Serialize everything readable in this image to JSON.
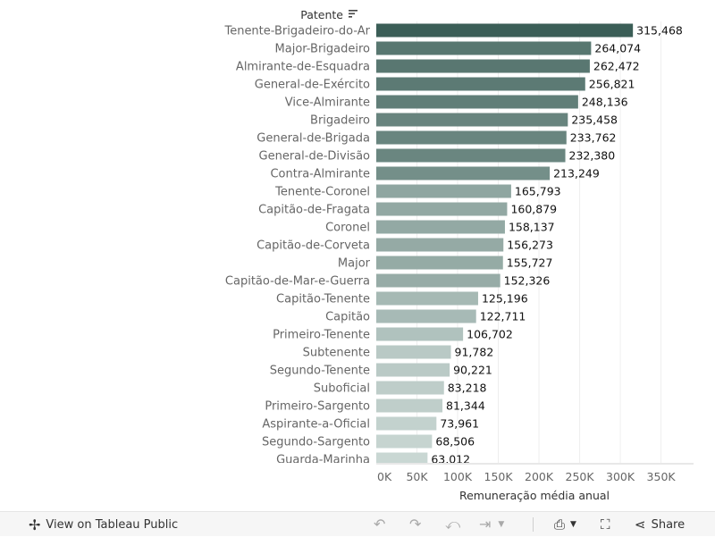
{
  "chart_data": {
    "type": "bar",
    "orientation": "horizontal",
    "header": "Patente",
    "xlabel": "Remuneração média anual",
    "ylabel": "",
    "xlim": [
      0,
      390000
    ],
    "xticks": [
      0,
      50000,
      100000,
      150000,
      200000,
      250000,
      300000,
      350000
    ],
    "xtick_labels": [
      "0K",
      "50K",
      "100K",
      "150K",
      "200K",
      "250K",
      "300K",
      "350K"
    ],
    "categories": [
      "Tenente-Brigadeiro-do-Ar",
      "Major-Brigadeiro",
      "Almirante-de-Esquadra",
      "General-de-Exército",
      "Vice-Almirante",
      "Brigadeiro",
      "General-de-Brigada",
      "General-de-Divisão",
      "Contra-Almirante",
      "Tenente-Coronel",
      "Capitão-de-Fragata",
      "Coronel",
      "Capitão-de-Corveta",
      "Major",
      "Capitão-de-Mar-e-Guerra",
      "Capitão-Tenente",
      "Capitão",
      "Primeiro-Tenente",
      "Subtenente",
      "Segundo-Tenente",
      "Suboficial",
      "Primeiro-Sargento",
      "Aspirante-a-Oficial",
      "Segundo-Sargento",
      "Guarda-Marinha"
    ],
    "values": [
      315468,
      264074,
      262472,
      256821,
      248136,
      235458,
      233762,
      232380,
      213249,
      165793,
      160879,
      158137,
      156273,
      155727,
      152326,
      125196,
      122711,
      106702,
      91782,
      90221,
      83218,
      81344,
      73961,
      68506,
      63012
    ],
    "value_labels": [
      "315,468",
      "264,074",
      "262,472",
      "256,821",
      "248,136",
      "235,458",
      "233,762",
      "232,380",
      "213,249",
      "165,793",
      "160,879",
      "158,137",
      "156,273",
      "155,727",
      "152,326",
      "125,196",
      "122,711",
      "106,702",
      "91,782",
      "90,221",
      "83,218",
      "81,344",
      "73,961",
      "68,506",
      "63,012"
    ],
    "color_range": [
      "#c9d7d3",
      "#3b5e57"
    ],
    "grid": true,
    "legend": "none"
  },
  "toolbar": {
    "view_label": "View on Tableau Public",
    "share_label": "Share"
  },
  "icons": {
    "tableau": "tableau-logo-icon",
    "undo": "undo-icon",
    "redo": "redo-icon",
    "revert": "revert-icon",
    "refresh": "refresh-icon",
    "download": "download-icon",
    "fullscreen": "fullscreen-icon",
    "share": "share-icon",
    "sort": "sort-icon"
  }
}
